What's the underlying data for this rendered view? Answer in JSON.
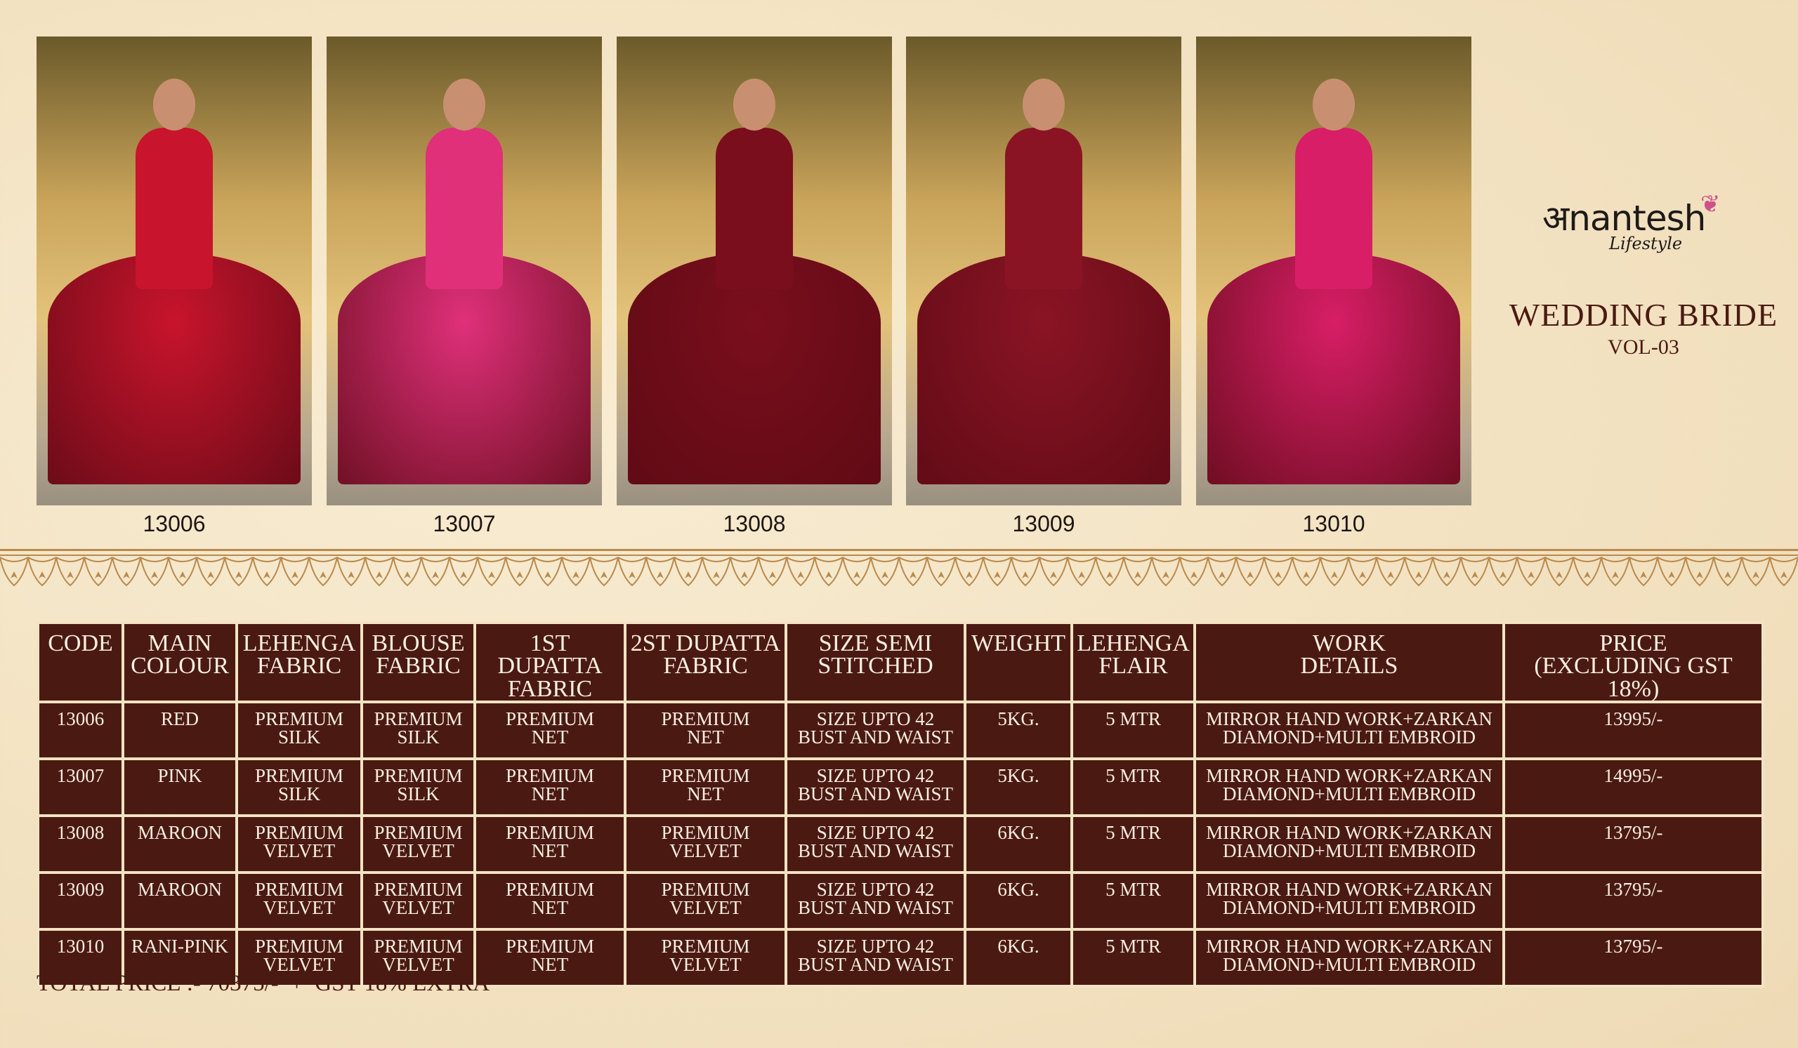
{
  "brand": {
    "logo_text": "अnantesh",
    "logo_subtext": "Lifestyle"
  },
  "catalog": {
    "title": "WEDDING BRIDE",
    "volume": "VOL-03"
  },
  "products": [
    {
      "code": "13006",
      "colour": "#c8142c"
    },
    {
      "code": "13007",
      "colour": "#e0307a"
    },
    {
      "code": "13008",
      "colour": "#7a0e1c"
    },
    {
      "code": "13009",
      "colour": "#8a1424"
    },
    {
      "code": "13010",
      "colour": "#d81e66"
    }
  ],
  "table": {
    "headers": [
      [
        "CODE"
      ],
      [
        "MAIN",
        "COLOUR"
      ],
      [
        "LEHENGA",
        "FABRIC"
      ],
      [
        "BLOUSE",
        "FABRIC"
      ],
      [
        "1ST DUPATTA",
        "FABRIC"
      ],
      [
        "2ST DUPATTA",
        "FABRIC"
      ],
      [
        "SIZE SEMI",
        "STITCHED"
      ],
      [
        "WEIGHT"
      ],
      [
        "LEHENGA",
        "FLAIR"
      ],
      [
        "WORK",
        "DETAILS"
      ],
      [
        "PRICE",
        "(EXCLUDING GST 18%)"
      ]
    ],
    "rows": [
      [
        [
          "13006"
        ],
        [
          "RED"
        ],
        [
          "PREMIUM",
          "SILK"
        ],
        [
          "PREMIUM",
          "SILK"
        ],
        [
          "PREMIUM",
          "NET"
        ],
        [
          "PREMIUM",
          "NET"
        ],
        [
          "SIZE UPTO 42",
          "BUST AND WAIST"
        ],
        [
          "5KG."
        ],
        [
          "5 MTR"
        ],
        [
          "MIRROR HAND WORK+ZARKAN",
          "DIAMOND+MULTI EMBROID"
        ],
        [
          "13995/-"
        ]
      ],
      [
        [
          "13007"
        ],
        [
          "PINK"
        ],
        [
          "PREMIUM",
          "SILK"
        ],
        [
          "PREMIUM",
          "SILK"
        ],
        [
          "PREMIUM",
          "NET"
        ],
        [
          "PREMIUM",
          "NET"
        ],
        [
          "SIZE UPTO 42",
          "BUST AND WAIST"
        ],
        [
          "5KG."
        ],
        [
          "5 MTR"
        ],
        [
          "MIRROR HAND WORK+ZARKAN",
          "DIAMOND+MULTI EMBROID"
        ],
        [
          "14995/-"
        ]
      ],
      [
        [
          "13008"
        ],
        [
          "MAROON"
        ],
        [
          "PREMIUM",
          "VELVET"
        ],
        [
          "PREMIUM",
          "VELVET"
        ],
        [
          "PREMIUM",
          "NET"
        ],
        [
          "PREMIUM",
          "VELVET"
        ],
        [
          "SIZE UPTO 42",
          "BUST AND WAIST"
        ],
        [
          "6KG."
        ],
        [
          "5 MTR"
        ],
        [
          "MIRROR HAND WORK+ZARKAN",
          "DIAMOND+MULTI EMBROID"
        ],
        [
          "13795/-"
        ]
      ],
      [
        [
          "13009"
        ],
        [
          "MAROON"
        ],
        [
          "PREMIUM",
          "VELVET"
        ],
        [
          "PREMIUM",
          "VELVET"
        ],
        [
          "PREMIUM",
          "NET"
        ],
        [
          "PREMIUM",
          "VELVET"
        ],
        [
          "SIZE UPTO 42",
          "BUST AND WAIST"
        ],
        [
          "6KG."
        ],
        [
          "5 MTR"
        ],
        [
          "MIRROR HAND WORK+ZARKAN",
          "DIAMOND+MULTI EMBROID"
        ],
        [
          "13795/-"
        ]
      ],
      [
        [
          "13010"
        ],
        [
          "RANI-PINK"
        ],
        [
          "PREMIUM",
          "VELVET"
        ],
        [
          "PREMIUM",
          "VELVET"
        ],
        [
          "PREMIUM",
          "NET"
        ],
        [
          "PREMIUM",
          "VELVET"
        ],
        [
          "SIZE UPTO 42",
          "BUST AND WAIST"
        ],
        [
          "6KG."
        ],
        [
          "5 MTR"
        ],
        [
          "MIRROR HAND WORK+ZARKAN",
          "DIAMOND+MULTI EMBROID"
        ],
        [
          "13795/-"
        ]
      ]
    ]
  },
  "footer": {
    "total": "TOTAL PRICE :- 70375/-  +  GST 18% EXTRA"
  },
  "colors": {
    "table_bg": "#4a1a12",
    "page_bg": "#f3e3c3",
    "accent": "#b98a4e"
  }
}
